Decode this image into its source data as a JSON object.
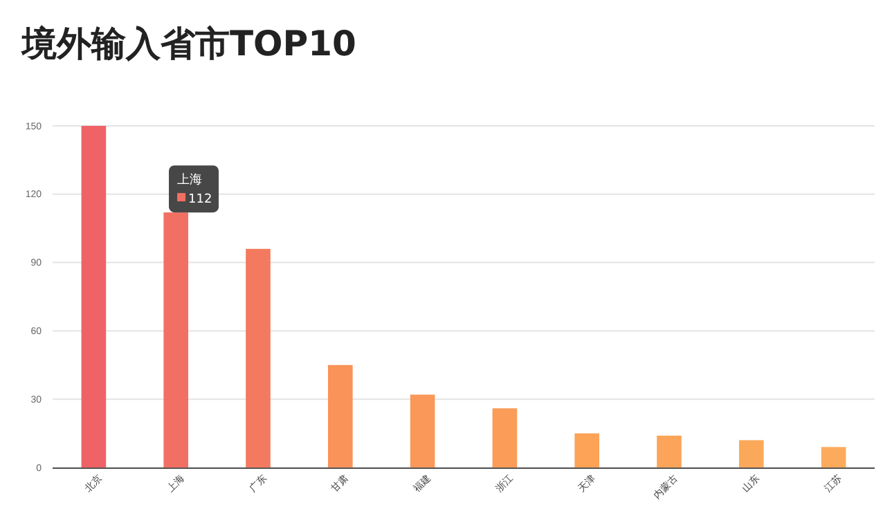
{
  "chart_data": {
    "type": "bar",
    "title": "境外输入省市TOP10",
    "categories": [
      "北京",
      "上海",
      "广东",
      "甘肃",
      "福建",
      "浙江",
      "天津",
      "内蒙古",
      "山东",
      "江苏"
    ],
    "values": [
      150,
      112,
      96,
      45,
      32,
      26,
      15,
      14,
      12,
      9
    ],
    "colors": [
      "#ef6366",
      "#f27063",
      "#f37a5f",
      "#f9935a",
      "#fa985a",
      "#fb9c58",
      "#fca357",
      "#fca459",
      "#fca85a",
      "#fcab5c"
    ],
    "ylim": [
      0,
      150
    ],
    "yticks": [
      0,
      30,
      60,
      90,
      120,
      150
    ],
    "grid": "y",
    "annotations": [
      {
        "text": "上海 112",
        "x": "上海",
        "y": 112
      }
    ]
  }
}
